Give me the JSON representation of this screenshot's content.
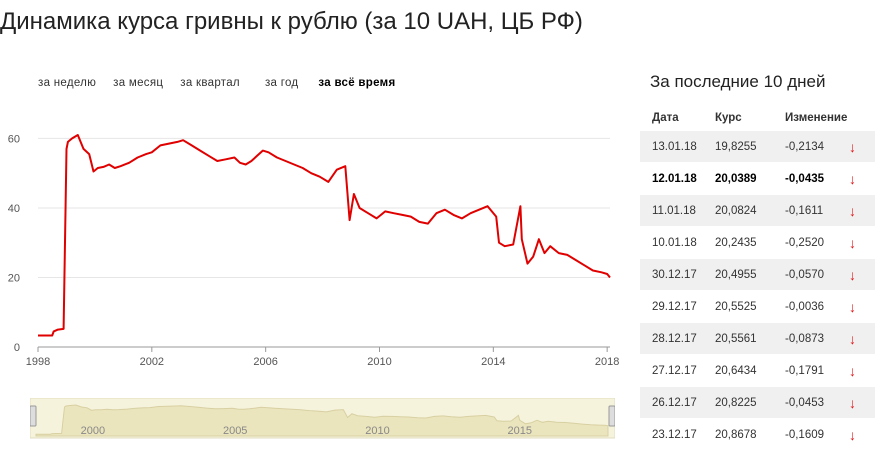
{
  "page": {
    "title": "Динамика курса гривны к рублю (за 10 UAH, ЦБ РФ)"
  },
  "tabs": [
    {
      "label": "за неделю",
      "active": false
    },
    {
      "label": "за месяц",
      "active": false
    },
    {
      "label": "за квартал",
      "active": false
    },
    {
      "label": "за год",
      "active": false
    },
    {
      "label": "за всё время",
      "active": true
    }
  ],
  "side": {
    "title": "За последние 10 дней",
    "headers": {
      "date": "Дата",
      "rate": "Курс",
      "change": "Изменение"
    },
    "rows": [
      {
        "date": "13.01.18",
        "rate": "19,8255",
        "change": "-0,2134",
        "arrow": "↓",
        "bold": false
      },
      {
        "date": "12.01.18",
        "rate": "20,0389",
        "change": "-0,0435",
        "arrow": "↓",
        "bold": true
      },
      {
        "date": "11.01.18",
        "rate": "20,0824",
        "change": "-0,1611",
        "arrow": "↓",
        "bold": false
      },
      {
        "date": "10.01.18",
        "rate": "20,2435",
        "change": "-0,2520",
        "arrow": "↓",
        "bold": false
      },
      {
        "date": "30.12.17",
        "rate": "20,4955",
        "change": "-0,0570",
        "arrow": "↓",
        "bold": false
      },
      {
        "date": "29.12.17",
        "rate": "20,5525",
        "change": "-0,0036",
        "arrow": "↓",
        "bold": false
      },
      {
        "date": "28.12.17",
        "rate": "20,5561",
        "change": "-0,0873",
        "arrow": "↓",
        "bold": false
      },
      {
        "date": "27.12.17",
        "rate": "20,6434",
        "change": "-0,1791",
        "arrow": "↓",
        "bold": false
      },
      {
        "date": "26.12.17",
        "rate": "20,8225",
        "change": "-0,0453",
        "arrow": "↓",
        "bold": false
      },
      {
        "date": "23.12.17",
        "rate": "20,8678",
        "change": "-0,1609",
        "arrow": "↓",
        "bold": false
      }
    ]
  },
  "chart_data": {
    "type": "line",
    "title": "",
    "xlabel": "",
    "ylabel": "",
    "xlim": [
      1998,
      2018.1
    ],
    "ylim": [
      0,
      63
    ],
    "x_ticks": [
      1998,
      2002,
      2006,
      2010,
      2014,
      2018
    ],
    "y_ticks": [
      0,
      20,
      40,
      60
    ],
    "grid": true,
    "line_color": "#e00000",
    "series": [
      {
        "x": [
          1998.0,
          1998.5,
          1998.55,
          1998.7,
          1998.9,
          1999.0,
          1999.05,
          1999.2,
          1999.4,
          1999.6,
          1999.8,
          1999.95,
          2000.1,
          2000.3,
          2000.5,
          2000.7,
          2000.9,
          2001.2,
          2001.5,
          2001.8,
          2002.0,
          2002.3,
          2002.6,
          2002.9,
          2003.1,
          2003.4,
          2003.7,
          2004.0,
          2004.3,
          2004.6,
          2004.9,
          2005.1,
          2005.3,
          2005.5,
          2005.7,
          2005.9,
          2006.1,
          2006.4,
          2006.7,
          2007.0,
          2007.3,
          2007.6,
          2007.9,
          2008.2,
          2008.5,
          2008.8,
          2008.95,
          2009.1,
          2009.3,
          2009.6,
          2009.9,
          2010.2,
          2010.5,
          2010.8,
          2011.1,
          2011.4,
          2011.7,
          2012.0,
          2012.3,
          2012.6,
          2012.9,
          2013.2,
          2013.5,
          2013.8,
          2014.1,
          2014.2,
          2014.4,
          2014.7,
          2014.95,
          2015.0,
          2015.2,
          2015.4,
          2015.6,
          2015.8,
          2016.0,
          2016.3,
          2016.6,
          2016.9,
          2017.2,
          2017.5,
          2017.8,
          2018.0,
          2018.1
        ],
        "y": [
          3.3,
          3.3,
          4.5,
          5.0,
          5.2,
          57.0,
          59.0,
          60.0,
          61.0,
          57.0,
          55.5,
          50.5,
          51.5,
          51.8,
          52.5,
          51.5,
          52.0,
          53.0,
          54.5,
          55.5,
          56.0,
          58.0,
          58.5,
          59.0,
          59.5,
          58.0,
          56.5,
          55.0,
          53.5,
          54.0,
          54.5,
          53.0,
          52.5,
          53.5,
          55.0,
          56.5,
          56.0,
          54.5,
          53.5,
          52.5,
          51.5,
          50.0,
          49.0,
          47.5,
          51.0,
          52.0,
          36.5,
          44.0,
          40.0,
          38.5,
          37.0,
          39.0,
          38.5,
          38.0,
          37.5,
          36.0,
          35.5,
          38.5,
          39.5,
          38.0,
          37.0,
          38.5,
          39.5,
          40.5,
          37.5,
          30.0,
          29.0,
          29.5,
          40.5,
          31.0,
          24.0,
          26.0,
          31.0,
          27.0,
          29.0,
          27.0,
          26.5,
          25.0,
          23.5,
          22.0,
          21.5,
          21.0,
          20.0
        ]
      }
    ],
    "navigator": {
      "x_labels": [
        "2000",
        "2005",
        "2010",
        "2015"
      ]
    }
  }
}
